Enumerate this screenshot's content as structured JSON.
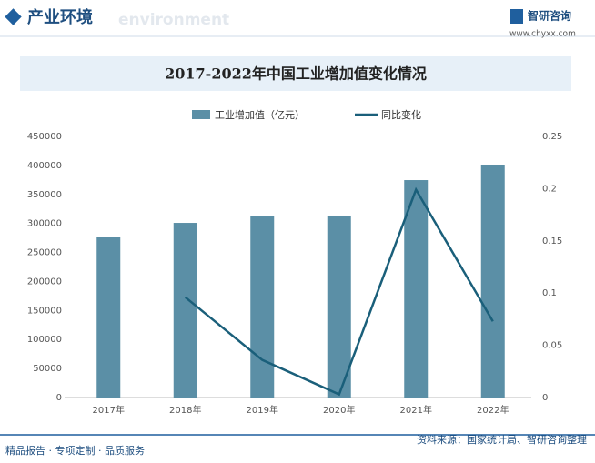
{
  "header": {
    "section": "产业环境",
    "section_en": "environment",
    "brand": "智研咨询",
    "url": "www.chyxx.com"
  },
  "chart_data": {
    "type": "bar-line",
    "title": "2017-2022年中国工业增加值变化情况",
    "categories": [
      "2017年",
      "2018年",
      "2019年",
      "2020年",
      "2021年",
      "2022年"
    ],
    "series": [
      {
        "name": "工业增加值（亿元）",
        "type": "bar",
        "color": "#5b8fa6",
        "values": [
          276000,
          301000,
          312000,
          313600,
          374700,
          401400
        ]
      },
      {
        "name": "同比变化",
        "type": "line",
        "axis": "y2",
        "color": "#1a5f7a",
        "values": [
          null,
          0.096,
          0.036,
          0.003,
          0.199,
          0.073
        ]
      }
    ],
    "ylim": [
      0,
      450000
    ],
    "yticks": [
      0,
      50000,
      100000,
      150000,
      200000,
      250000,
      300000,
      350000,
      400000,
      450000
    ],
    "y2lim": [
      0,
      0.25
    ],
    "y2ticks": [
      0,
      0.05,
      0.1,
      0.15,
      0.2,
      0.25
    ],
    "grid": false
  },
  "footer": {
    "slogan": "精品报告 · 专项定制 · 品质服务",
    "source": "资料来源：国家统计局、智研咨询整理"
  }
}
